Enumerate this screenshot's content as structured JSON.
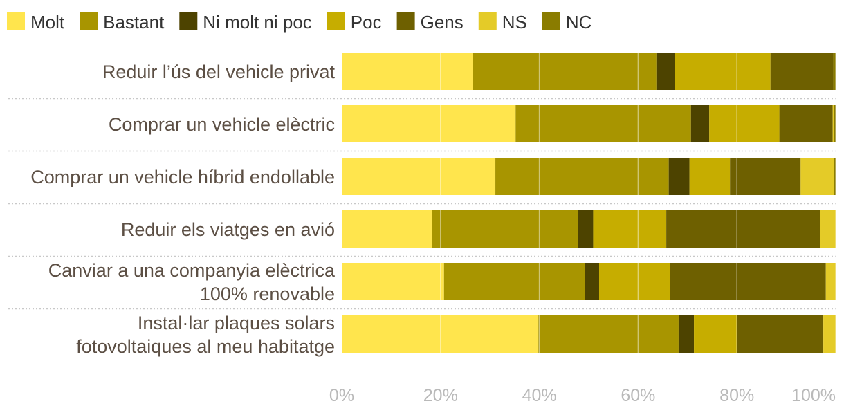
{
  "chart_data": {
    "type": "bar",
    "orientation": "horizontal",
    "stacked": true,
    "normalized": true,
    "title": "",
    "xlabel": "",
    "ylabel": "",
    "xlim": [
      0,
      100
    ],
    "x_ticks": [
      "0%",
      "20%",
      "40%",
      "60%",
      "80%",
      "100%"
    ],
    "legend_position": "top-left",
    "grid": true,
    "categories": [
      [
        "Reduir l’ús del vehicle privat"
      ],
      [
        "Comprar un vehicle elèctric"
      ],
      [
        "Comprar un vehicle híbrid endollable"
      ],
      [
        "Reduir els viatges en avió"
      ],
      [
        "Canviar a una companyia elèctrica",
        "100% renovable"
      ],
      [
        "Instal·lar plaques solars",
        "fotovoltaiques al meu habitatge"
      ]
    ],
    "series": [
      {
        "name": "Molt",
        "color": "#ffe54d",
        "values": [
          26.6,
          35.2,
          31.1,
          18.3,
          20.7,
          39.8
        ]
      },
      {
        "name": "Bastant",
        "color": "#a89500",
        "values": [
          37.1,
          35.5,
          35.1,
          29.5,
          28.6,
          28.4
        ]
      },
      {
        "name": "Ni molt ni poc",
        "color": "#4d4300",
        "values": [
          3.7,
          3.7,
          4.2,
          3.1,
          2.8,
          3.1
        ]
      },
      {
        "name": "Poc",
        "color": "#c6ad00",
        "values": [
          19.4,
          14.2,
          8.2,
          14.8,
          14.3,
          8.8
        ]
      },
      {
        "name": "Gens",
        "color": "#6e6000",
        "values": [
          12.7,
          10.8,
          14.3,
          31.1,
          31.6,
          17.4
        ]
      },
      {
        "name": "NS",
        "color": "#e4cb28",
        "values": [
          0.0,
          0.2,
          6.8,
          3.3,
          2.0,
          2.5
        ]
      },
      {
        "name": "NC",
        "color": "#8a7c00",
        "values": [
          0.5,
          0.4,
          0.3,
          0.0,
          0.0,
          0.0
        ]
      }
    ]
  }
}
